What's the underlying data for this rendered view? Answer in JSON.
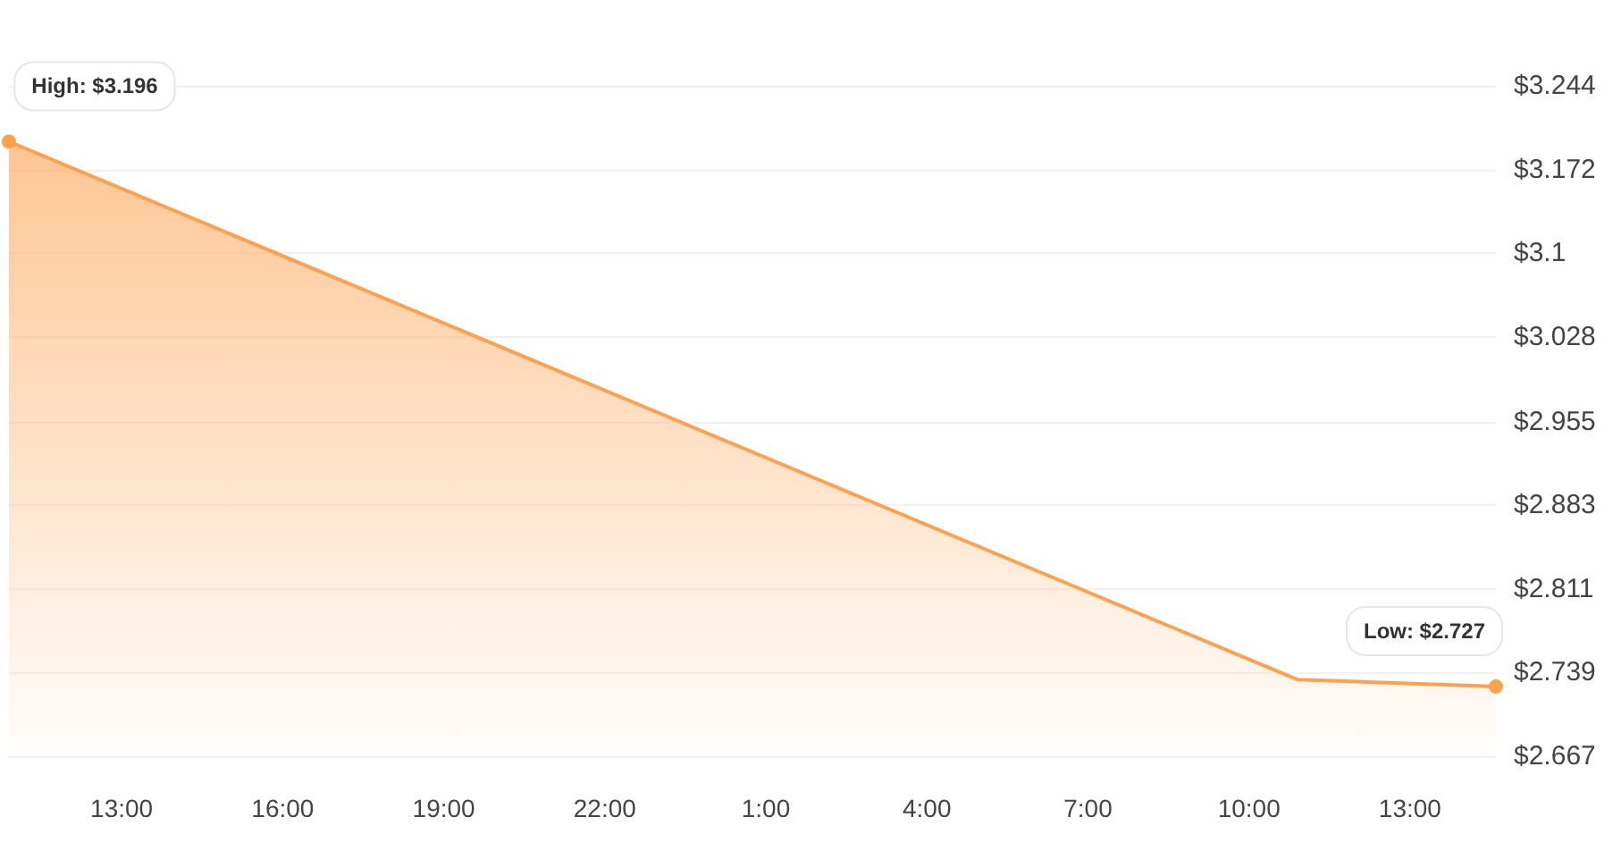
{
  "chart_data": {
    "type": "area",
    "x": [
      "2000-01-01T10:54",
      "2000-01-02T10:54",
      "2000-01-02T14:36"
    ],
    "series": [
      {
        "color": "#ffa14f",
        "values": [
          3.196,
          2.733,
          2.727
        ]
      }
    ],
    "xlim": [
      "2000-01-01T10:54",
      "2000-01-02T14:36"
    ],
    "xticks": [
      {
        "value": "2000-01-01T13:00",
        "label": "13:00"
      },
      {
        "value": "2000-01-01T16:00",
        "label": "16:00"
      },
      {
        "value": "2000-01-01T19:00",
        "label": "19:00"
      },
      {
        "value": "2000-01-01T22:00",
        "label": "22:00"
      },
      {
        "value": "2000-01-02T01:00",
        "label": "1:00"
      },
      {
        "value": "2000-01-02T04:00",
        "label": "4:00"
      },
      {
        "value": "2000-01-02T07:00",
        "label": "7:00"
      },
      {
        "value": "2000-01-02T10:00",
        "label": "10:00"
      },
      {
        "value": "2000-01-02T13:00",
        "label": "13:00"
      }
    ],
    "ylim": [
      2.667,
      3.244
    ],
    "yticks": [
      {
        "value": 2.667,
        "label": "$2.667"
      },
      {
        "value": 2.739,
        "label": "$2.739"
      },
      {
        "value": 2.811,
        "label": "$2.811"
      },
      {
        "value": 2.883,
        "label": "$2.883"
      },
      {
        "value": 2.955,
        "label": "$2.955"
      },
      {
        "value": 3.028,
        "label": "$3.028"
      },
      {
        "value": 3.1,
        "label": "$3.1"
      },
      {
        "value": 3.172,
        "label": "$3.172"
      },
      {
        "value": 3.244,
        "label": "$3.244"
      }
    ],
    "annotations": [
      {
        "text": "High: $3.196",
        "x": "2000-01-01T10:54",
        "y": 3.196
      },
      {
        "text": "Low: $2.727",
        "x": "2000-01-02T14:36",
        "y": 2.727
      }
    ],
    "grid": "y",
    "line_style": "solid"
  }
}
